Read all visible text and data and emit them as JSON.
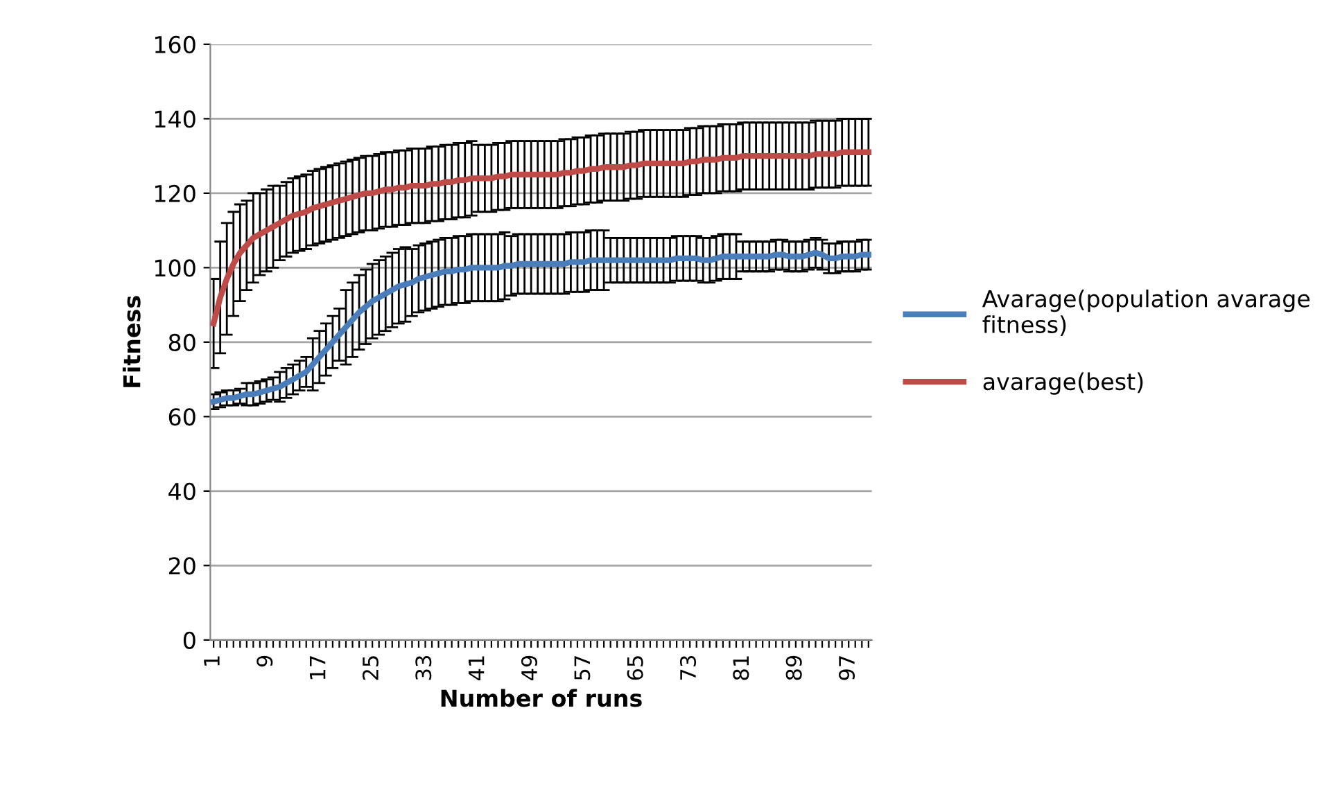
{
  "chart_data": {
    "type": "line",
    "xlabel": "Number of runs",
    "ylabel": "Fitness",
    "categories": [
      "1",
      null,
      null,
      null,
      null,
      null,
      null,
      null,
      "9",
      null,
      null,
      null,
      null,
      null,
      null,
      null,
      "17",
      null,
      null,
      null,
      null,
      null,
      null,
      null,
      "25",
      null,
      null,
      null,
      null,
      null,
      null,
      null,
      "33",
      null,
      null,
      null,
      null,
      null,
      null,
      null,
      "41",
      null,
      null,
      null,
      null,
      null,
      null,
      null,
      "49",
      null,
      null,
      null,
      null,
      null,
      null,
      null,
      "57",
      null,
      null,
      null,
      null,
      null,
      null,
      null,
      "65",
      null,
      null,
      null,
      null,
      null,
      null,
      null,
      "73",
      null,
      null,
      null,
      null,
      null,
      null,
      null,
      "81",
      null,
      null,
      null,
      null,
      null,
      null,
      null,
      "89",
      null,
      null,
      null,
      null,
      null,
      null,
      null,
      "97",
      null,
      null,
      null
    ],
    "ylim": [
      0,
      160
    ],
    "yticks": [
      0,
      20,
      40,
      60,
      80,
      100,
      120,
      140,
      160
    ],
    "grid": "y",
    "legend": "right",
    "marker": "none",
    "line_style": "solid",
    "series": [
      {
        "name": "Avarage(population avarage fitness)",
        "color": "#4a7ebb",
        "values": [
          64,
          64.5,
          65,
          65,
          65.5,
          66,
          66,
          66.5,
          67,
          67.5,
          68,
          69,
          70,
          71,
          72,
          74,
          76,
          78,
          80,
          82,
          84,
          86,
          88,
          89.5,
          91,
          92,
          93,
          94,
          95,
          95.5,
          96,
          97,
          97.5,
          98,
          98.5,
          99,
          99,
          99.5,
          99.5,
          100,
          100,
          100,
          100,
          100,
          100.5,
          100.5,
          101,
          101,
          101,
          101,
          101,
          101,
          101,
          101,
          101.5,
          101.5,
          101.5,
          102,
          102,
          102,
          102,
          102,
          102,
          102,
          102,
          102,
          102,
          102,
          102,
          102,
          102.5,
          102.5,
          102.5,
          102.5,
          102,
          102,
          102.5,
          103,
          103,
          103,
          103,
          103,
          103,
          103,
          103,
          103.5,
          103.5,
          103,
          103,
          103,
          103.5,
          104,
          103.5,
          102.5,
          102.5,
          103,
          103,
          103,
          103.5,
          103.5
        ],
        "errors": [
          2,
          2,
          2,
          2,
          2,
          3,
          3,
          3,
          3,
          3,
          4,
          4,
          4,
          4,
          4,
          7,
          7,
          7,
          7,
          7,
          10,
          10,
          10,
          10,
          10,
          10,
          10,
          10,
          10,
          10,
          9,
          9,
          9,
          9,
          9,
          9,
          9,
          9,
          9,
          9,
          9,
          9,
          9,
          9,
          9,
          8,
          8,
          8,
          8,
          8,
          8,
          8,
          8,
          8,
          8,
          8,
          8,
          8,
          8,
          8,
          6,
          6,
          6,
          6,
          6,
          6,
          6,
          6,
          6,
          6,
          6,
          6,
          6,
          6,
          6,
          6,
          6,
          6,
          6,
          6,
          4,
          4,
          4,
          4,
          4,
          4,
          4,
          4,
          4,
          4,
          4,
          4,
          4,
          4,
          4,
          4,
          4,
          4,
          4,
          4
        ]
      },
      {
        "name": "avarage(best)",
        "color": "#be4b48",
        "values": [
          85,
          92,
          97,
          101,
          104,
          106,
          108,
          109,
          110,
          111,
          112,
          113,
          114,
          114.5,
          115,
          116,
          116.5,
          117,
          117.5,
          118,
          118.5,
          119,
          119.5,
          120,
          120,
          120.5,
          121,
          121,
          121.5,
          121.5,
          122,
          122,
          122,
          122.5,
          122.5,
          123,
          123,
          123.5,
          123.5,
          124,
          124,
          124,
          124,
          124.5,
          124.5,
          125,
          125,
          125,
          125,
          125,
          125,
          125,
          125,
          125.5,
          125.5,
          126,
          126,
          126.5,
          126.5,
          127,
          127,
          127,
          127,
          127.5,
          127.5,
          128,
          128,
          128,
          128,
          128,
          128,
          128,
          128.5,
          128.5,
          129,
          129,
          129,
          129.5,
          129.5,
          129.5,
          130,
          130,
          130,
          130,
          130,
          130,
          130,
          130,
          130,
          130,
          130,
          130.5,
          130.5,
          130.5,
          130.5,
          131,
          131,
          131,
          131,
          131
        ],
        "errors": [
          12,
          15,
          15,
          14,
          13,
          12,
          12,
          11,
          11,
          11,
          10,
          10,
          10,
          10,
          10,
          10,
          10,
          10,
          10,
          10,
          10,
          10,
          10,
          10,
          10,
          10,
          10,
          10,
          10,
          10,
          10,
          10,
          10,
          10,
          10,
          10,
          10,
          10,
          10,
          10,
          9,
          9,
          9,
          9,
          9,
          9,
          9,
          9,
          9,
          9,
          9,
          9,
          9,
          9,
          9,
          9,
          9,
          9,
          9,
          9,
          9,
          9,
          9,
          9,
          9,
          9,
          9,
          9,
          9,
          9,
          9,
          9,
          9,
          9,
          9,
          9,
          9,
          9,
          9,
          9,
          9,
          9,
          9,
          9,
          9,
          9,
          9,
          9,
          9,
          9,
          9,
          9,
          9,
          9,
          9,
          9,
          9,
          9,
          9,
          9
        ]
      }
    ]
  }
}
